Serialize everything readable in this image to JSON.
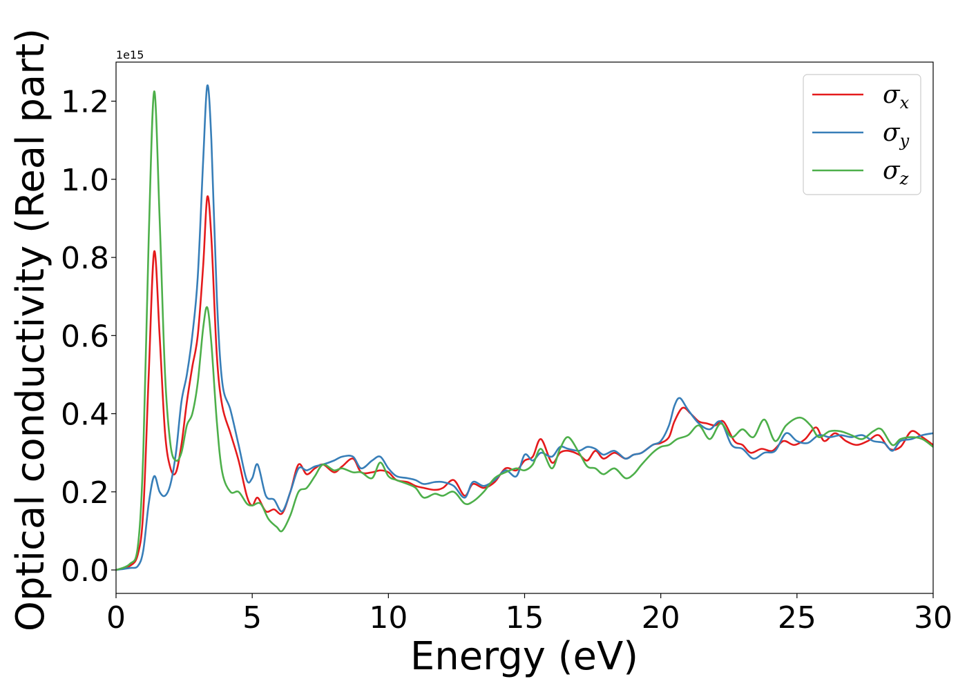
{
  "chart_data": {
    "type": "line",
    "xlabel": "Energy (eV)",
    "ylabel": "Optical conductivity (Real part)",
    "y_offset_text": "1e15",
    "y_scale": 1000000000000000.0,
    "xlim": [
      0,
      30
    ],
    "ylim": [
      -0.06,
      1.3
    ],
    "xticks": [
      0,
      5,
      10,
      15,
      20,
      25,
      30
    ],
    "xtick_labels": [
      "0",
      "5",
      "10",
      "15",
      "20",
      "25",
      "30"
    ],
    "yticks": [
      0.0,
      0.2,
      0.4,
      0.6,
      0.8,
      1.0,
      1.2
    ],
    "ytick_labels": [
      "0.0",
      "0.2",
      "0.4",
      "0.6",
      "0.8",
      "1.0",
      "1.2"
    ],
    "grid": false,
    "legend_position": "top-right",
    "series": [
      {
        "name": "σx",
        "symbol": "σ",
        "subscript": "x",
        "color": "#e41a1c",
        "points": [
          [
            0,
            0
          ],
          [
            0.5,
            0.01
          ],
          [
            0.8,
            0.04
          ],
          [
            1.0,
            0.15
          ],
          [
            1.2,
            0.5
          ],
          [
            1.4,
            0.815
          ],
          [
            1.6,
            0.6
          ],
          [
            1.8,
            0.35
          ],
          [
            2.0,
            0.26
          ],
          [
            2.2,
            0.25
          ],
          [
            2.4,
            0.32
          ],
          [
            2.6,
            0.43
          ],
          [
            2.8,
            0.52
          ],
          [
            3.0,
            0.6
          ],
          [
            3.2,
            0.78
          ],
          [
            3.35,
            0.955
          ],
          [
            3.5,
            0.85
          ],
          [
            3.7,
            0.55
          ],
          [
            3.9,
            0.42
          ],
          [
            4.2,
            0.35
          ],
          [
            4.5,
            0.28
          ],
          [
            4.8,
            0.19
          ],
          [
            5.0,
            0.165
          ],
          [
            5.2,
            0.185
          ],
          [
            5.5,
            0.15
          ],
          [
            5.8,
            0.155
          ],
          [
            6.1,
            0.145
          ],
          [
            6.4,
            0.2
          ],
          [
            6.7,
            0.27
          ],
          [
            7.0,
            0.245
          ],
          [
            7.3,
            0.26
          ],
          [
            7.6,
            0.27
          ],
          [
            8.0,
            0.25
          ],
          [
            8.3,
            0.265
          ],
          [
            8.7,
            0.285
          ],
          [
            9.0,
            0.25
          ],
          [
            9.4,
            0.25
          ],
          [
            9.7,
            0.255
          ],
          [
            10.0,
            0.25
          ],
          [
            10.3,
            0.23
          ],
          [
            10.7,
            0.225
          ],
          [
            11.0,
            0.215
          ],
          [
            11.3,
            0.21
          ],
          [
            11.7,
            0.205
          ],
          [
            12.0,
            0.21
          ],
          [
            12.4,
            0.23
          ],
          [
            12.8,
            0.19
          ],
          [
            13.1,
            0.22
          ],
          [
            13.5,
            0.21
          ],
          [
            13.9,
            0.225
          ],
          [
            14.3,
            0.26
          ],
          [
            14.7,
            0.255
          ],
          [
            15.0,
            0.28
          ],
          [
            15.3,
            0.29
          ],
          [
            15.6,
            0.335
          ],
          [
            16.0,
            0.275
          ],
          [
            16.3,
            0.3
          ],
          [
            16.6,
            0.305
          ],
          [
            17.0,
            0.295
          ],
          [
            17.3,
            0.28
          ],
          [
            17.6,
            0.305
          ],
          [
            17.9,
            0.285
          ],
          [
            18.3,
            0.3
          ],
          [
            18.7,
            0.285
          ],
          [
            19.0,
            0.295
          ],
          [
            19.3,
            0.3
          ],
          [
            19.7,
            0.32
          ],
          [
            20.0,
            0.325
          ],
          [
            20.3,
            0.34
          ],
          [
            20.5,
            0.38
          ],
          [
            20.8,
            0.415
          ],
          [
            21.1,
            0.4
          ],
          [
            21.4,
            0.38
          ],
          [
            21.7,
            0.375
          ],
          [
            22.0,
            0.37
          ],
          [
            22.3,
            0.38
          ],
          [
            22.7,
            0.33
          ],
          [
            23.0,
            0.32
          ],
          [
            23.3,
            0.3
          ],
          [
            23.7,
            0.31
          ],
          [
            24.1,
            0.305
          ],
          [
            24.5,
            0.33
          ],
          [
            24.9,
            0.32
          ],
          [
            25.3,
            0.335
          ],
          [
            25.7,
            0.365
          ],
          [
            26.0,
            0.33
          ],
          [
            26.4,
            0.35
          ],
          [
            26.8,
            0.33
          ],
          [
            27.2,
            0.32
          ],
          [
            27.6,
            0.33
          ],
          [
            28.0,
            0.345
          ],
          [
            28.4,
            0.31
          ],
          [
            28.8,
            0.315
          ],
          [
            29.2,
            0.355
          ],
          [
            29.6,
            0.34
          ],
          [
            30.0,
            0.32
          ]
        ]
      },
      {
        "name": "σy",
        "symbol": "σ",
        "subscript": "y",
        "color": "#377eb8",
        "points": [
          [
            0,
            0
          ],
          [
            0.5,
            0.005
          ],
          [
            0.8,
            0.01
          ],
          [
            1.0,
            0.05
          ],
          [
            1.2,
            0.17
          ],
          [
            1.4,
            0.24
          ],
          [
            1.6,
            0.2
          ],
          [
            1.8,
            0.19
          ],
          [
            2.0,
            0.22
          ],
          [
            2.2,
            0.3
          ],
          [
            2.4,
            0.43
          ],
          [
            2.6,
            0.5
          ],
          [
            2.8,
            0.6
          ],
          [
            3.0,
            0.75
          ],
          [
            3.2,
            1.05
          ],
          [
            3.35,
            1.24
          ],
          [
            3.5,
            1.1
          ],
          [
            3.7,
            0.7
          ],
          [
            3.9,
            0.48
          ],
          [
            4.2,
            0.41
          ],
          [
            4.5,
            0.32
          ],
          [
            4.8,
            0.23
          ],
          [
            5.0,
            0.235
          ],
          [
            5.2,
            0.27
          ],
          [
            5.5,
            0.19
          ],
          [
            5.8,
            0.18
          ],
          [
            6.1,
            0.15
          ],
          [
            6.4,
            0.2
          ],
          [
            6.7,
            0.26
          ],
          [
            7.0,
            0.255
          ],
          [
            7.3,
            0.265
          ],
          [
            7.6,
            0.27
          ],
          [
            8.0,
            0.28
          ],
          [
            8.3,
            0.29
          ],
          [
            8.7,
            0.29
          ],
          [
            9.0,
            0.26
          ],
          [
            9.4,
            0.28
          ],
          [
            9.7,
            0.29
          ],
          [
            10.0,
            0.26
          ],
          [
            10.3,
            0.24
          ],
          [
            10.7,
            0.235
          ],
          [
            11.0,
            0.23
          ],
          [
            11.3,
            0.22
          ],
          [
            11.7,
            0.225
          ],
          [
            12.0,
            0.225
          ],
          [
            12.4,
            0.215
          ],
          [
            12.8,
            0.185
          ],
          [
            13.1,
            0.225
          ],
          [
            13.5,
            0.215
          ],
          [
            13.9,
            0.23
          ],
          [
            14.3,
            0.255
          ],
          [
            14.7,
            0.24
          ],
          [
            15.0,
            0.295
          ],
          [
            15.3,
            0.28
          ],
          [
            15.6,
            0.3
          ],
          [
            16.0,
            0.29
          ],
          [
            16.3,
            0.315
          ],
          [
            16.6,
            0.31
          ],
          [
            17.0,
            0.305
          ],
          [
            17.3,
            0.315
          ],
          [
            17.6,
            0.31
          ],
          [
            17.9,
            0.295
          ],
          [
            18.3,
            0.305
          ],
          [
            18.7,
            0.285
          ],
          [
            19.0,
            0.295
          ],
          [
            19.3,
            0.3
          ],
          [
            19.7,
            0.32
          ],
          [
            20.0,
            0.33
          ],
          [
            20.3,
            0.37
          ],
          [
            20.5,
            0.42
          ],
          [
            20.7,
            0.44
          ],
          [
            21.0,
            0.41
          ],
          [
            21.4,
            0.375
          ],
          [
            21.8,
            0.36
          ],
          [
            22.2,
            0.38
          ],
          [
            22.6,
            0.32
          ],
          [
            23.0,
            0.31
          ],
          [
            23.4,
            0.285
          ],
          [
            23.8,
            0.3
          ],
          [
            24.2,
            0.305
          ],
          [
            24.6,
            0.35
          ],
          [
            25.0,
            0.33
          ],
          [
            25.4,
            0.325
          ],
          [
            25.8,
            0.345
          ],
          [
            26.2,
            0.34
          ],
          [
            26.6,
            0.345
          ],
          [
            27.0,
            0.34
          ],
          [
            27.4,
            0.345
          ],
          [
            27.8,
            0.33
          ],
          [
            28.2,
            0.325
          ],
          [
            28.5,
            0.305
          ],
          [
            28.8,
            0.33
          ],
          [
            29.2,
            0.335
          ],
          [
            29.6,
            0.345
          ],
          [
            30.0,
            0.35
          ]
        ]
      },
      {
        "name": "σz",
        "symbol": "σ",
        "subscript": "z",
        "color": "#4daf4a",
        "points": [
          [
            0,
            0
          ],
          [
            0.5,
            0.015
          ],
          [
            0.8,
            0.06
          ],
          [
            1.0,
            0.3
          ],
          [
            1.2,
            0.85
          ],
          [
            1.4,
            1.225
          ],
          [
            1.6,
            0.9
          ],
          [
            1.8,
            0.5
          ],
          [
            2.0,
            0.32
          ],
          [
            2.2,
            0.28
          ],
          [
            2.4,
            0.3
          ],
          [
            2.6,
            0.37
          ],
          [
            2.8,
            0.4
          ],
          [
            3.0,
            0.48
          ],
          [
            3.2,
            0.62
          ],
          [
            3.35,
            0.672
          ],
          [
            3.5,
            0.58
          ],
          [
            3.7,
            0.38
          ],
          [
            3.9,
            0.25
          ],
          [
            4.2,
            0.2
          ],
          [
            4.5,
            0.2
          ],
          [
            4.8,
            0.17
          ],
          [
            5.0,
            0.165
          ],
          [
            5.3,
            0.17
          ],
          [
            5.6,
            0.13
          ],
          [
            5.9,
            0.11
          ],
          [
            6.1,
            0.1
          ],
          [
            6.4,
            0.14
          ],
          [
            6.7,
            0.2
          ],
          [
            7.0,
            0.21
          ],
          [
            7.3,
            0.24
          ],
          [
            7.6,
            0.27
          ],
          [
            8.0,
            0.255
          ],
          [
            8.3,
            0.26
          ],
          [
            8.7,
            0.25
          ],
          [
            9.0,
            0.25
          ],
          [
            9.4,
            0.235
          ],
          [
            9.7,
            0.275
          ],
          [
            10.0,
            0.24
          ],
          [
            10.3,
            0.23
          ],
          [
            10.7,
            0.22
          ],
          [
            11.0,
            0.21
          ],
          [
            11.3,
            0.185
          ],
          [
            11.7,
            0.195
          ],
          [
            12.0,
            0.19
          ],
          [
            12.4,
            0.2
          ],
          [
            12.8,
            0.17
          ],
          [
            13.1,
            0.175
          ],
          [
            13.5,
            0.2
          ],
          [
            13.9,
            0.235
          ],
          [
            14.3,
            0.25
          ],
          [
            14.7,
            0.26
          ],
          [
            15.0,
            0.255
          ],
          [
            15.3,
            0.27
          ],
          [
            15.6,
            0.31
          ],
          [
            16.0,
            0.26
          ],
          [
            16.3,
            0.31
          ],
          [
            16.6,
            0.34
          ],
          [
            17.0,
            0.3
          ],
          [
            17.3,
            0.265
          ],
          [
            17.6,
            0.26
          ],
          [
            17.9,
            0.245
          ],
          [
            18.3,
            0.26
          ],
          [
            18.7,
            0.235
          ],
          [
            19.0,
            0.245
          ],
          [
            19.3,
            0.27
          ],
          [
            19.7,
            0.3
          ],
          [
            20.0,
            0.315
          ],
          [
            20.3,
            0.32
          ],
          [
            20.6,
            0.335
          ],
          [
            21.0,
            0.345
          ],
          [
            21.4,
            0.37
          ],
          [
            21.8,
            0.335
          ],
          [
            22.2,
            0.375
          ],
          [
            22.6,
            0.34
          ],
          [
            23.0,
            0.36
          ],
          [
            23.4,
            0.34
          ],
          [
            23.8,
            0.385
          ],
          [
            24.2,
            0.33
          ],
          [
            24.6,
            0.37
          ],
          [
            25.1,
            0.39
          ],
          [
            25.5,
            0.37
          ],
          [
            25.8,
            0.34
          ],
          [
            26.2,
            0.355
          ],
          [
            26.6,
            0.355
          ],
          [
            27.0,
            0.345
          ],
          [
            27.4,
            0.335
          ],
          [
            27.8,
            0.355
          ],
          [
            28.1,
            0.36
          ],
          [
            28.5,
            0.32
          ],
          [
            28.8,
            0.335
          ],
          [
            29.2,
            0.34
          ],
          [
            29.6,
            0.335
          ],
          [
            30.0,
            0.315
          ]
        ]
      }
    ]
  }
}
